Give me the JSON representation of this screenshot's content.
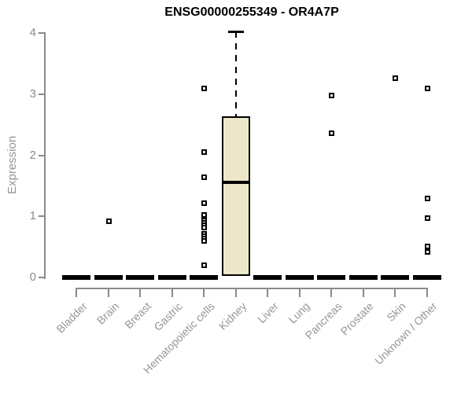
{
  "chart_data": {
    "type": "boxplot",
    "title": "ENSG00000255349 - OR4A7P",
    "ylabel": "Expression",
    "xlabel": "",
    "ylim": [
      0,
      4
    ],
    "yticks": [
      0,
      1,
      2,
      3,
      4
    ],
    "grid": false,
    "legend": "none",
    "box_fill_color": "#ece7c9",
    "axis_color": "#8a8a8a",
    "label_color": "#969696",
    "categories": [
      "Bladder",
      "Brain",
      "Breast",
      "Gastric",
      "Hematopoietic cells",
      "Kidney",
      "Liver",
      "Lung",
      "Pancreas",
      "Prostate",
      "Skin",
      "Unknown / Other"
    ],
    "boxes": [
      {
        "category": "Bladder",
        "min": 0,
        "q1": 0,
        "median": 0,
        "q3": 0,
        "max": 0,
        "outliers": []
      },
      {
        "category": "Brain",
        "min": 0,
        "q1": 0,
        "median": 0,
        "q3": 0,
        "max": 0,
        "outliers": [
          0.93
        ]
      },
      {
        "category": "Breast",
        "min": 0,
        "q1": 0,
        "median": 0,
        "q3": 0,
        "max": 0,
        "outliers": []
      },
      {
        "category": "Gastric",
        "min": 0,
        "q1": 0,
        "median": 0,
        "q3": 0,
        "max": 0,
        "outliers": []
      },
      {
        "category": "Hematopoietic cells",
        "min": 0,
        "q1": 0,
        "median": 0,
        "q3": 0,
        "max": 0,
        "outliers": [
          3.1,
          2.06,
          1.64,
          1.22,
          1.03,
          0.94,
          0.9,
          0.86,
          0.82,
          0.72,
          0.68,
          0.64,
          0.6,
          0.21
        ]
      },
      {
        "category": "Kidney",
        "min": 0,
        "q1": 0.02,
        "median": 1.56,
        "q3": 2.64,
        "max": 4.02,
        "outliers": []
      },
      {
        "category": "Liver",
        "min": 0,
        "q1": 0,
        "median": 0,
        "q3": 0,
        "max": 0,
        "outliers": []
      },
      {
        "category": "Lung",
        "min": 0,
        "q1": 0,
        "median": 0,
        "q3": 0,
        "max": 0,
        "outliers": []
      },
      {
        "category": "Pancreas",
        "min": 0,
        "q1": 0,
        "median": 0,
        "q3": 0,
        "max": 0,
        "outliers": [
          2.98,
          2.37
        ]
      },
      {
        "category": "Prostate",
        "min": 0,
        "q1": 0,
        "median": 0,
        "q3": 0,
        "max": 0,
        "outliers": []
      },
      {
        "category": "Skin",
        "min": 0,
        "q1": 0,
        "median": 0,
        "q3": 0,
        "max": 0,
        "outliers": [
          3.27
        ]
      },
      {
        "category": "Unknown / Other",
        "min": 0,
        "q1": 0,
        "median": 0,
        "q3": 0,
        "max": 0,
        "outliers": [
          3.1,
          1.3,
          0.98,
          0.51,
          0.42
        ]
      }
    ]
  }
}
